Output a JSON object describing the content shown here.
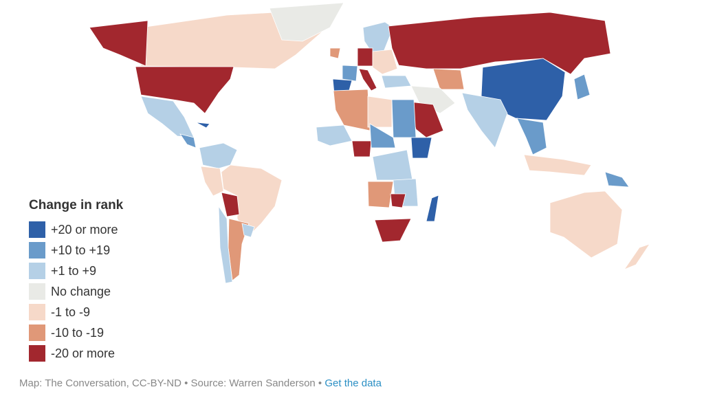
{
  "legend": {
    "title": "Change in rank",
    "items": [
      {
        "label": "+20 or more",
        "color": "#2e60a8"
      },
      {
        "label": "+10 to +19",
        "color": "#6a9bca"
      },
      {
        "label": "+1 to +9",
        "color": "#b5d0e6"
      },
      {
        "label": "No change",
        "color": "#e9eae6"
      },
      {
        "label": "-1 to -9",
        "color": "#f6d9c9"
      },
      {
        "label": "-10 to -19",
        "color": "#e09878"
      },
      {
        "label": "-20 or more",
        "color": "#a2272e"
      }
    ]
  },
  "footer": {
    "credit": "Map: The Conversation, CC-BY-ND",
    "separator": "•",
    "source": "Source: Warren Sanderson",
    "link": "Get the data"
  }
}
